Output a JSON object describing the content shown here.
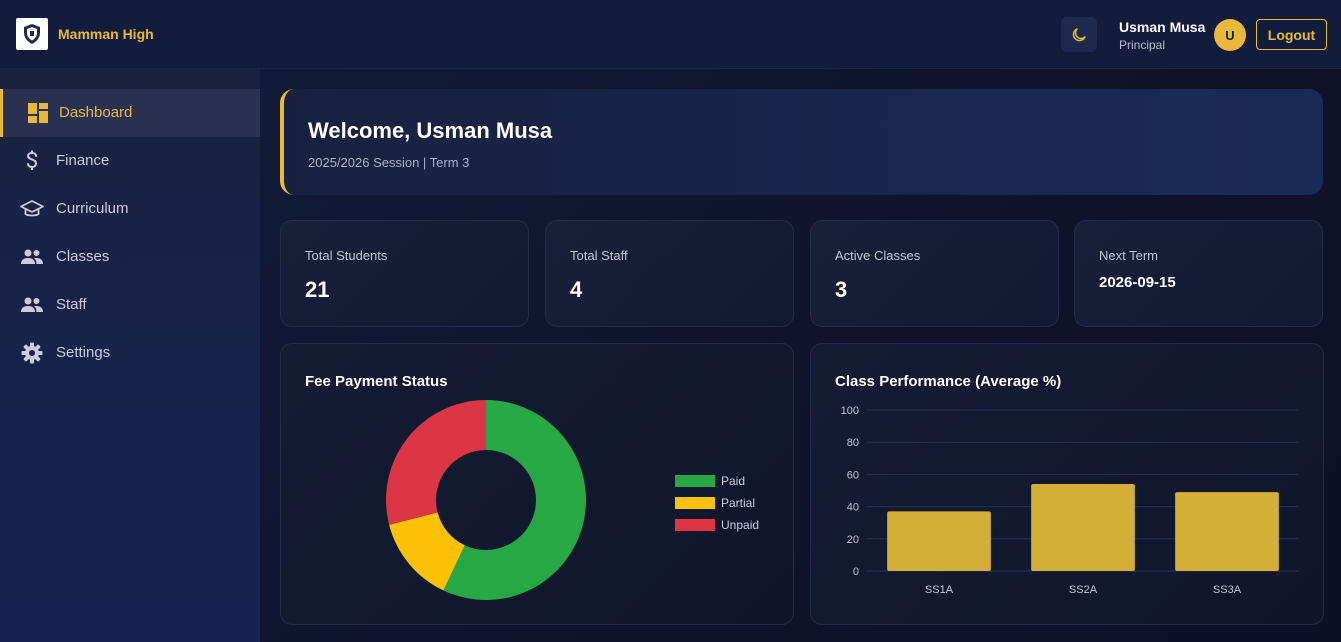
{
  "header": {
    "brand": "Mamman High",
    "user_name": "Usman Musa",
    "user_role": "Principal",
    "avatar_initial": "U",
    "logout_label": "Logout",
    "theme_icon": "moon-icon"
  },
  "sidebar": {
    "items": [
      {
        "label": "Dashboard",
        "icon": "dashboard-icon",
        "active": true
      },
      {
        "label": "Finance",
        "icon": "dollar-icon",
        "active": false
      },
      {
        "label": "Curriculum",
        "icon": "graduation-cap-icon",
        "active": false
      },
      {
        "label": "Classes",
        "icon": "people-icon",
        "active": false
      },
      {
        "label": "Staff",
        "icon": "people-icon",
        "active": false
      },
      {
        "label": "Settings",
        "icon": "gear-icon",
        "active": false
      }
    ]
  },
  "welcome": {
    "title": "Welcome, Usman Musa",
    "subtitle": "2025/2026 Session | Term 3"
  },
  "stats": [
    {
      "label": "Total Students",
      "value": "21"
    },
    {
      "label": "Total Staff",
      "value": "4"
    },
    {
      "label": "Active Classes",
      "value": "3"
    },
    {
      "label": "Next Term",
      "value": "2026-09-15"
    }
  ],
  "colors": {
    "accent": "#e8b93a",
    "paid": "#28a745",
    "partial": "#ffc107",
    "unpaid": "#dc3545",
    "bar": "#d4af37"
  },
  "chart_data": [
    {
      "type": "pie",
      "title": "Fee Payment Status",
      "labels": [
        "Paid",
        "Partial",
        "Unpaid"
      ],
      "values": [
        57,
        14,
        29
      ],
      "colors": [
        "#28a745",
        "#ffc107",
        "#dc3545"
      ],
      "legend": "right"
    },
    {
      "type": "bar",
      "title": "Class Performance (Average %)",
      "categories": [
        "SS1A",
        "SS2A",
        "SS3A"
      ],
      "values": [
        37,
        54,
        49
      ],
      "ylim": [
        0,
        100
      ],
      "yticks": [
        0,
        20,
        40,
        60,
        80,
        100
      ],
      "grid": true,
      "color": "#d4af37"
    }
  ]
}
